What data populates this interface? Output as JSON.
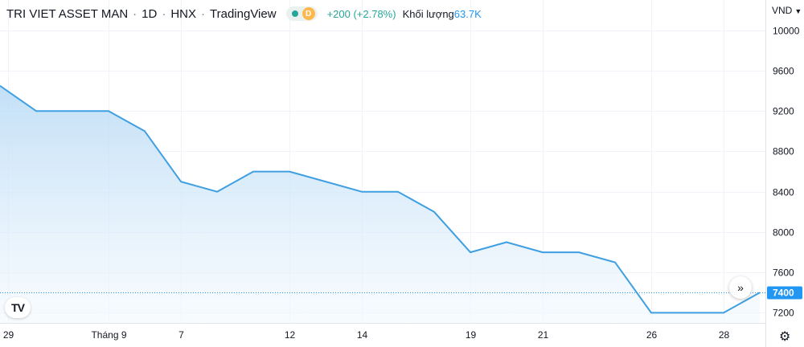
{
  "legend": {
    "symbol_name": "TRI VIET ASSET MAN",
    "interval": "1D",
    "exchange": "HNX",
    "provider": "TradingView",
    "timeframe_badge": "D",
    "change": "+200 (+2.78%)",
    "volume_label": "Khối lượng",
    "volume_value": "63.7K"
  },
  "price_axis": {
    "unit": "VND",
    "last_price_label": "7400"
  },
  "colors": {
    "line": "#3f9fe0",
    "fill_top": "#b8daf5",
    "fill_bottom": "#f3f9fe",
    "grid": "#f0f3fa",
    "last_price": "#2196f3",
    "positive": "#26a69a"
  },
  "icons": {
    "scroll_right": "double-chevron-right-icon",
    "logo": "tradingview-logo-icon",
    "settings": "gear-icon",
    "dropdown": "caret-down-icon"
  },
  "chart_data": {
    "type": "area",
    "title": "",
    "xlabel": "",
    "ylabel": "",
    "ylim": [
      7100,
      10300
    ],
    "yticks": [
      7200,
      7600,
      8000,
      8400,
      8800,
      9200,
      9600,
      10000
    ],
    "last_price": 7400,
    "x_ticks": [
      {
        "index": 0,
        "label": "29"
      },
      {
        "index": 3,
        "label": "Tháng 9"
      },
      {
        "index": 5,
        "label": "7"
      },
      {
        "index": 8,
        "label": "12"
      },
      {
        "index": 10,
        "label": "14"
      },
      {
        "index": 13,
        "label": "19"
      },
      {
        "index": 15,
        "label": "21"
      },
      {
        "index": 18,
        "label": "26"
      },
      {
        "index": 20,
        "label": "28"
      }
    ],
    "series": [
      {
        "values": [
          9450,
          9200,
          9200,
          9200,
          9000,
          8500,
          8400,
          8600,
          8600,
          8500,
          8400,
          8400,
          8200,
          7800,
          7900,
          7800,
          7800,
          7700,
          7200,
          7200,
          7200,
          7400
        ]
      }
    ]
  }
}
